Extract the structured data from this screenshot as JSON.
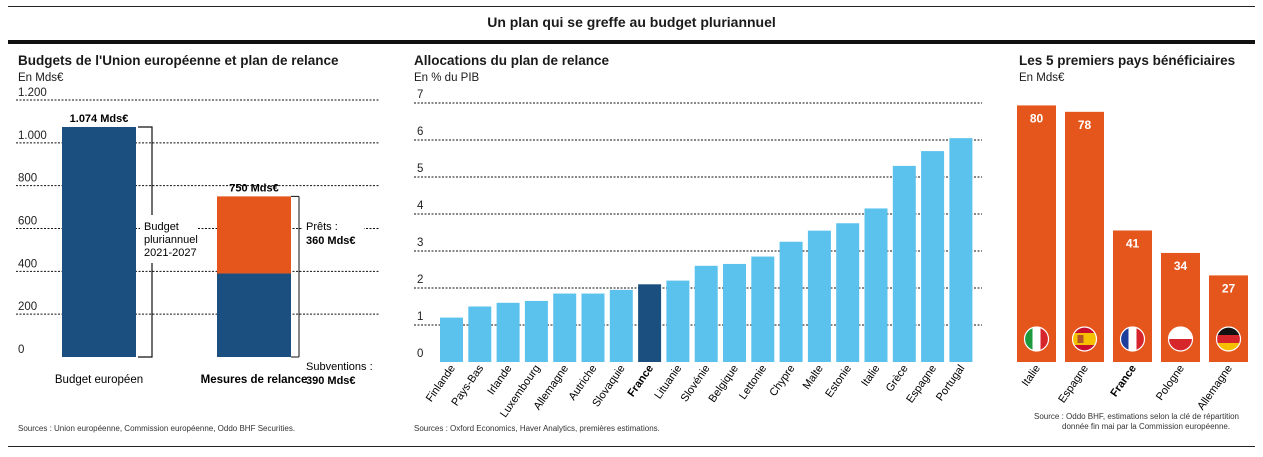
{
  "main_title": "Un plan qui se greffe au budget pluriannuel",
  "colors": {
    "dark_blue": "#1b4f80",
    "light_blue": "#5bc2ee",
    "orange": "#e5561d",
    "grid": "#111111",
    "white": "#ffffff"
  },
  "panel1": {
    "title": "Budgets de l'Union européenne et plan de relance",
    "unit": "En Mds€",
    "source": "Sources : Union européenne, Commission européenne, Oddo BHF Securities."
  },
  "panel2": {
    "title": "Allocations du plan de relance",
    "unit": "En % du PIB",
    "source": "Sources : Oxford Economics, Haver Analytics, premières estimations."
  },
  "panel3": {
    "title": "Les 5 premiers pays bénéficiaires",
    "unit": "En Mds€",
    "source_line1": "Source : Oddo BHF, estimations selon la clé de répartition",
    "source_line2": "donnée fin mai par la Commission européenne."
  },
  "chart_data": [
    {
      "type": "bar",
      "stacked": true,
      "title": "Budgets de l'Union européenne et plan de relance",
      "ylabel": "En Mds€",
      "ylim": [
        0,
        1200
      ],
      "yticks": [
        0,
        200,
        400,
        600,
        800,
        1000,
        1200
      ],
      "ytick_labels": [
        "0",
        "200",
        "400",
        "600",
        "800",
        "1.000",
        "1.200"
      ],
      "grid": true,
      "categories": [
        "Budget européen",
        "Mesures de relance"
      ],
      "series": [
        {
          "name": "Subventions",
          "values": [
            1074,
            390
          ]
        },
        {
          "name": "Prêts",
          "values": [
            0,
            360
          ]
        }
      ],
      "total_labels": [
        "1.074 Mds€",
        "750 Mds€"
      ],
      "annotations": {
        "budget": "Budget pluriannuel 2021-2027",
        "budget_lines": [
          "Budget",
          "pluriannuel",
          "2021-2027"
        ],
        "prets_label": "Prêts :",
        "prets_value": "360 Mds€",
        "subventions_label": "Subventions :",
        "subventions_value": "390 Mds€"
      }
    },
    {
      "type": "bar",
      "title": "Allocations du plan de relance",
      "ylabel": "En % du PIB",
      "ylim": [
        0,
        7
      ],
      "yticks": [
        0,
        1,
        2,
        3,
        4,
        5,
        6,
        7
      ],
      "grid": true,
      "highlight": "France",
      "categories": [
        "Finlande",
        "Pays-Bas",
        "Irlande",
        "Luxembourg",
        "Allemagne",
        "Autriche",
        "Slovaquie",
        "France",
        "Lituanie",
        "Slovénie",
        "Belgique",
        "Lettonie",
        "Chypre",
        "Malte",
        "Estonie",
        "Italie",
        "Grèce",
        "Espagne",
        "Portugal"
      ],
      "values": [
        1.2,
        1.5,
        1.6,
        1.65,
        1.85,
        1.85,
        1.95,
        2.1,
        2.2,
        2.6,
        2.65,
        2.85,
        3.25,
        3.55,
        3.75,
        4.15,
        5.3,
        5.7,
        6.05
      ]
    },
    {
      "type": "bar",
      "title": "Les 5 premiers pays bénéficiaires",
      "ylabel": "En Mds€",
      "ylim": [
        0,
        82
      ],
      "grid": false,
      "highlight": "France",
      "categories": [
        "Italie",
        "Espagne",
        "France",
        "Pologne",
        "Allemagne"
      ],
      "values": [
        80,
        78,
        41,
        34,
        27
      ],
      "value_labels": [
        "80",
        "78",
        "41",
        "34",
        "27"
      ],
      "flags": [
        "italy-flag-icon",
        "spain-flag-icon",
        "france-flag-icon",
        "poland-flag-icon",
        "germany-flag-icon"
      ]
    }
  ]
}
